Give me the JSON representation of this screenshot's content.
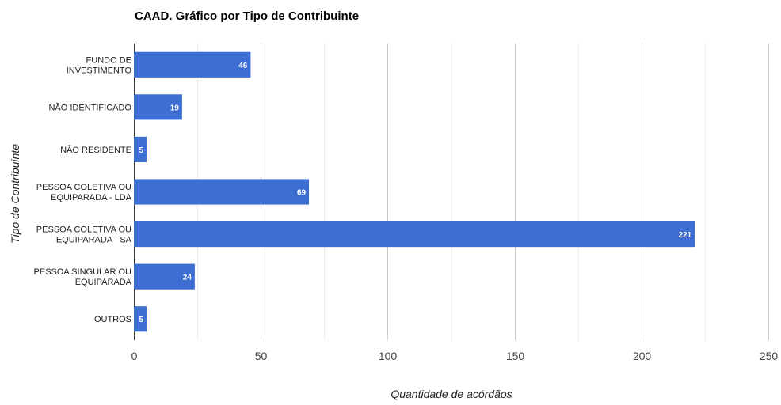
{
  "chart_data": {
    "type": "bar",
    "orientation": "horizontal",
    "title": "CAAD. Gráfico por Tipo de Contribuinte",
    "xlabel": "Quantidade de acórdãos",
    "ylabel": "Tipo de Contribuinte",
    "categories": [
      [
        "FUNDO DE",
        "INVESTIMENTO"
      ],
      [
        "NÃO IDENTIFICADO"
      ],
      [
        "NÃO RESIDENTE"
      ],
      [
        "PESSOA COLETIVA OU",
        "EQUIPARADA - LDA"
      ],
      [
        "PESSOA COLETIVA OU",
        "EQUIPARADA - SA"
      ],
      [
        "PESSOA SINGULAR OU",
        "EQUIPARADA"
      ],
      [
        "OUTROS"
      ]
    ],
    "values": [
      46,
      19,
      5,
      69,
      221,
      24,
      5
    ],
    "data_labels": [
      "46",
      "19",
      "5",
      "69",
      "221",
      "24",
      "5"
    ],
    "xlim": [
      0,
      250
    ],
    "xticks": [
      0,
      50,
      100,
      150,
      200,
      250
    ],
    "xtick_labels": [
      "0",
      "50",
      "100",
      "150",
      "200",
      "250"
    ],
    "grid": true,
    "legend": "none",
    "colors": {
      "bar": "#3d6fd3",
      "major_grid": "#cccccc",
      "minor_grid": "#ebebeb",
      "axis": "#333333"
    }
  }
}
